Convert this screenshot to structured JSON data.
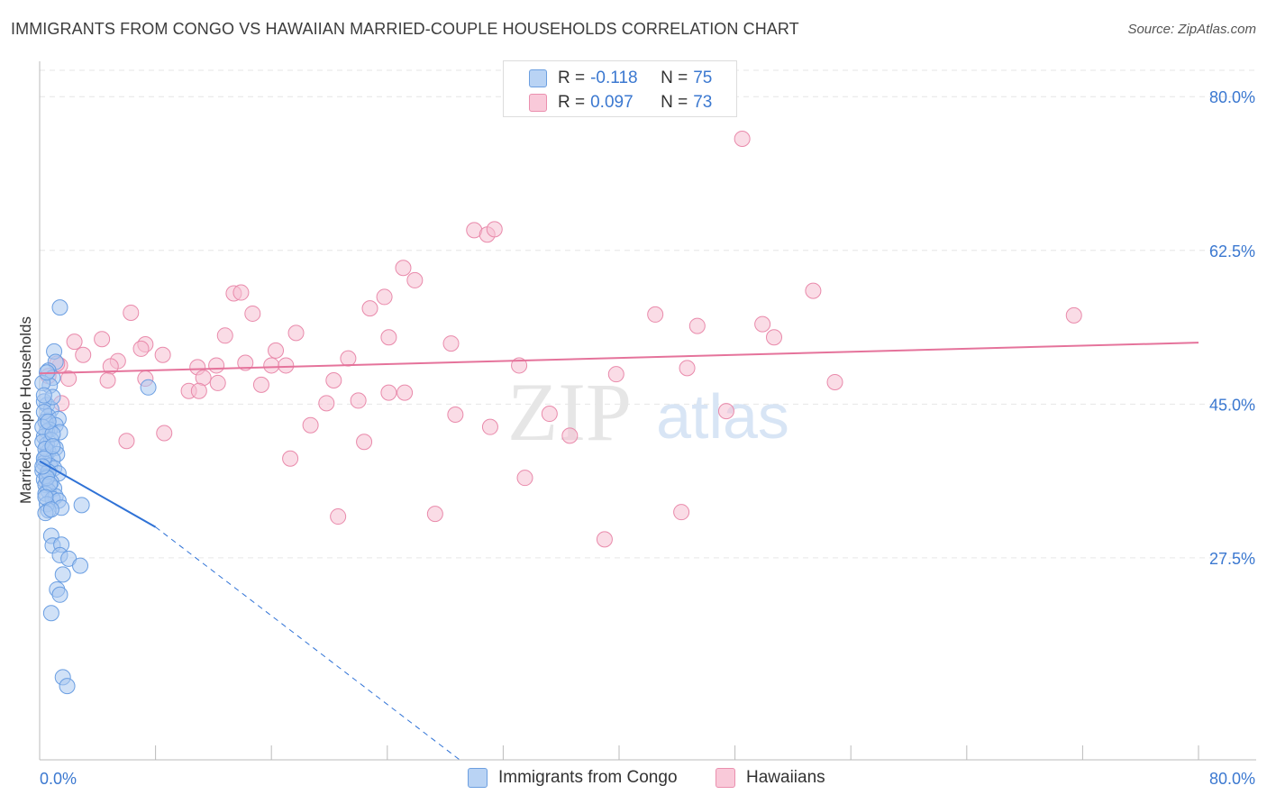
{
  "header": {
    "title": "IMMIGRANTS FROM CONGO VS HAWAIIAN MARRIED-COUPLE HOUSEHOLDS CORRELATION CHART",
    "source": "Source: ZipAtlas.com"
  },
  "watermark": {
    "zip": "ZIP",
    "atlas": "atlas"
  },
  "legend": {
    "r_label": "R =",
    "n_label": "N =",
    "series1_r": "-0.118",
    "series1_n": "75",
    "series2_r": "0.097",
    "series2_n": "73"
  },
  "colors": {
    "blue_fill": "#a9c8f0",
    "blue_stroke": "#6a9ee2",
    "blue_line": "#2f72d6",
    "pink_fill": "#f6bfd1",
    "pink_stroke": "#e98aab",
    "pink_line": "#e5739b",
    "tick_label": "#3b78d0",
    "grid": "#e6e6e6"
  },
  "chart_data": {
    "type": "scatter",
    "title": "IMMIGRANTS FROM CONGO VS HAWAIIAN MARRIED-COUPLE HOUSEHOLDS CORRELATION CHART",
    "xlabel": "",
    "ylabel": "Married-couple Households",
    "xlim": [
      0,
      80
    ],
    "ylim": [
      4.5,
      83
    ],
    "x_tick_labels": [
      "0.0%",
      "80.0%"
    ],
    "y_ticks": [
      27.5,
      45.0,
      62.5,
      80.0
    ],
    "y_tick_labels": [
      "27.5%",
      "45.0%",
      "62.5%",
      "80.0%"
    ],
    "legend_position": "top-center",
    "series": [
      {
        "name": "Immigrants from Congo",
        "r": -0.118,
        "n": 75,
        "trend_solid": [
          [
            0,
            38.5
          ],
          [
            8,
            31.0
          ]
        ],
        "trend_dashed": [
          [
            8,
            31.0
          ],
          [
            29,
            4.5
          ]
        ],
        "points": [
          [
            1.4,
            56.0
          ],
          [
            1.0,
            51.0
          ],
          [
            1.1,
            49.8
          ],
          [
            0.6,
            48.8
          ],
          [
            0.9,
            48.0
          ],
          [
            0.7,
            47.1
          ],
          [
            7.5,
            46.9
          ],
          [
            0.5,
            44.9
          ],
          [
            0.8,
            44.4
          ],
          [
            0.6,
            43.6
          ],
          [
            1.3,
            43.3
          ],
          [
            0.4,
            43.0
          ],
          [
            1.1,
            42.6
          ],
          [
            0.7,
            42.1
          ],
          [
            0.5,
            41.9
          ],
          [
            1.4,
            41.8
          ],
          [
            0.3,
            41.3
          ],
          [
            0.8,
            40.9
          ],
          [
            0.5,
            40.4
          ],
          [
            1.1,
            40.0
          ],
          [
            0.6,
            39.6
          ],
          [
            1.2,
            39.3
          ],
          [
            0.4,
            39.0
          ],
          [
            0.9,
            38.7
          ],
          [
            0.3,
            38.3
          ],
          [
            0.7,
            38.0
          ],
          [
            1.0,
            37.7
          ],
          [
            0.2,
            37.4
          ],
          [
            1.3,
            37.1
          ],
          [
            0.5,
            36.8
          ],
          [
            0.3,
            36.4
          ],
          [
            0.8,
            36.1
          ],
          [
            0.4,
            35.8
          ],
          [
            1.0,
            35.4
          ],
          [
            0.6,
            35.1
          ],
          [
            0.4,
            34.8
          ],
          [
            1.1,
            34.5
          ],
          [
            0.9,
            34.2
          ],
          [
            1.3,
            34.0
          ],
          [
            0.5,
            33.6
          ],
          [
            2.9,
            33.5
          ],
          [
            1.5,
            33.2
          ],
          [
            0.6,
            32.9
          ],
          [
            0.4,
            32.6
          ],
          [
            0.8,
            30.0
          ],
          [
            0.9,
            28.9
          ],
          [
            1.5,
            29.0
          ],
          [
            1.4,
            27.8
          ],
          [
            2.0,
            27.4
          ],
          [
            2.8,
            26.6
          ],
          [
            1.6,
            25.6
          ],
          [
            1.2,
            23.9
          ],
          [
            1.4,
            23.3
          ],
          [
            0.8,
            21.2
          ],
          [
            1.6,
            13.9
          ],
          [
            1.9,
            12.9
          ],
          [
            0.3,
            45.3
          ],
          [
            0.9,
            45.8
          ],
          [
            0.2,
            40.7
          ],
          [
            0.6,
            37.3
          ],
          [
            0.3,
            44.1
          ],
          [
            0.2,
            42.4
          ],
          [
            0.9,
            41.6
          ],
          [
            0.4,
            39.9
          ],
          [
            0.5,
            36.6
          ],
          [
            0.7,
            35.9
          ],
          [
            0.4,
            34.4
          ],
          [
            0.8,
            33.0
          ],
          [
            0.3,
            38.8
          ],
          [
            0.6,
            43.0
          ],
          [
            0.2,
            47.4
          ],
          [
            0.5,
            48.6
          ],
          [
            0.3,
            46.0
          ],
          [
            0.9,
            40.2
          ],
          [
            0.2,
            37.9
          ]
        ]
      },
      {
        "name": "Hawaiians",
        "r": 0.097,
        "n": 73,
        "trend": [
          [
            0,
            48.5
          ],
          [
            80,
            52.0
          ]
        ],
        "points": [
          [
            48.5,
            75.2
          ],
          [
            30.0,
            64.8
          ],
          [
            30.9,
            64.3
          ],
          [
            31.4,
            64.9
          ],
          [
            25.1,
            60.5
          ],
          [
            25.9,
            59.1
          ],
          [
            13.4,
            57.6
          ],
          [
            13.9,
            57.7
          ],
          [
            23.8,
            57.2
          ],
          [
            22.8,
            55.9
          ],
          [
            6.3,
            55.4
          ],
          [
            14.7,
            55.3
          ],
          [
            42.5,
            55.2
          ],
          [
            53.4,
            57.9
          ],
          [
            71.4,
            55.1
          ],
          [
            45.4,
            53.9
          ],
          [
            49.9,
            54.1
          ],
          [
            50.7,
            52.6
          ],
          [
            17.7,
            53.1
          ],
          [
            12.8,
            52.8
          ],
          [
            24.1,
            52.6
          ],
          [
            2.4,
            52.1
          ],
          [
            4.3,
            52.4
          ],
          [
            7.3,
            51.8
          ],
          [
            28.4,
            51.9
          ],
          [
            7.0,
            51.3
          ],
          [
            16.3,
            51.1
          ],
          [
            3.0,
            50.6
          ],
          [
            8.5,
            50.6
          ],
          [
            21.3,
            50.2
          ],
          [
            5.4,
            49.9
          ],
          [
            14.2,
            49.7
          ],
          [
            16.0,
            49.4
          ],
          [
            1.4,
            49.4
          ],
          [
            4.9,
            49.3
          ],
          [
            10.9,
            49.2
          ],
          [
            12.2,
            49.4
          ],
          [
            17.0,
            49.4
          ],
          [
            33.1,
            49.4
          ],
          [
            44.7,
            49.1
          ],
          [
            11.3,
            48.0
          ],
          [
            2.0,
            47.9
          ],
          [
            4.7,
            47.7
          ],
          [
            7.3,
            47.9
          ],
          [
            20.3,
            47.7
          ],
          [
            12.3,
            47.4
          ],
          [
            15.3,
            47.2
          ],
          [
            10.3,
            46.5
          ],
          [
            11.0,
            46.5
          ],
          [
            24.1,
            46.3
          ],
          [
            39.8,
            48.4
          ],
          [
            54.9,
            47.5
          ],
          [
            25.2,
            46.3
          ],
          [
            22.0,
            45.4
          ],
          [
            19.8,
            45.1
          ],
          [
            28.7,
            43.8
          ],
          [
            35.2,
            43.9
          ],
          [
            47.4,
            44.2
          ],
          [
            18.7,
            42.6
          ],
          [
            31.1,
            42.4
          ],
          [
            8.6,
            41.7
          ],
          [
            36.6,
            41.4
          ],
          [
            6.0,
            40.8
          ],
          [
            22.4,
            40.7
          ],
          [
            17.3,
            38.8
          ],
          [
            33.5,
            36.6
          ],
          [
            44.3,
            32.7
          ],
          [
            27.3,
            32.5
          ],
          [
            20.6,
            32.2
          ],
          [
            39.0,
            29.6
          ],
          [
            1.5,
            45.1
          ],
          [
            0.6,
            48.2
          ],
          [
            1.2,
            49.6
          ]
        ]
      }
    ]
  }
}
